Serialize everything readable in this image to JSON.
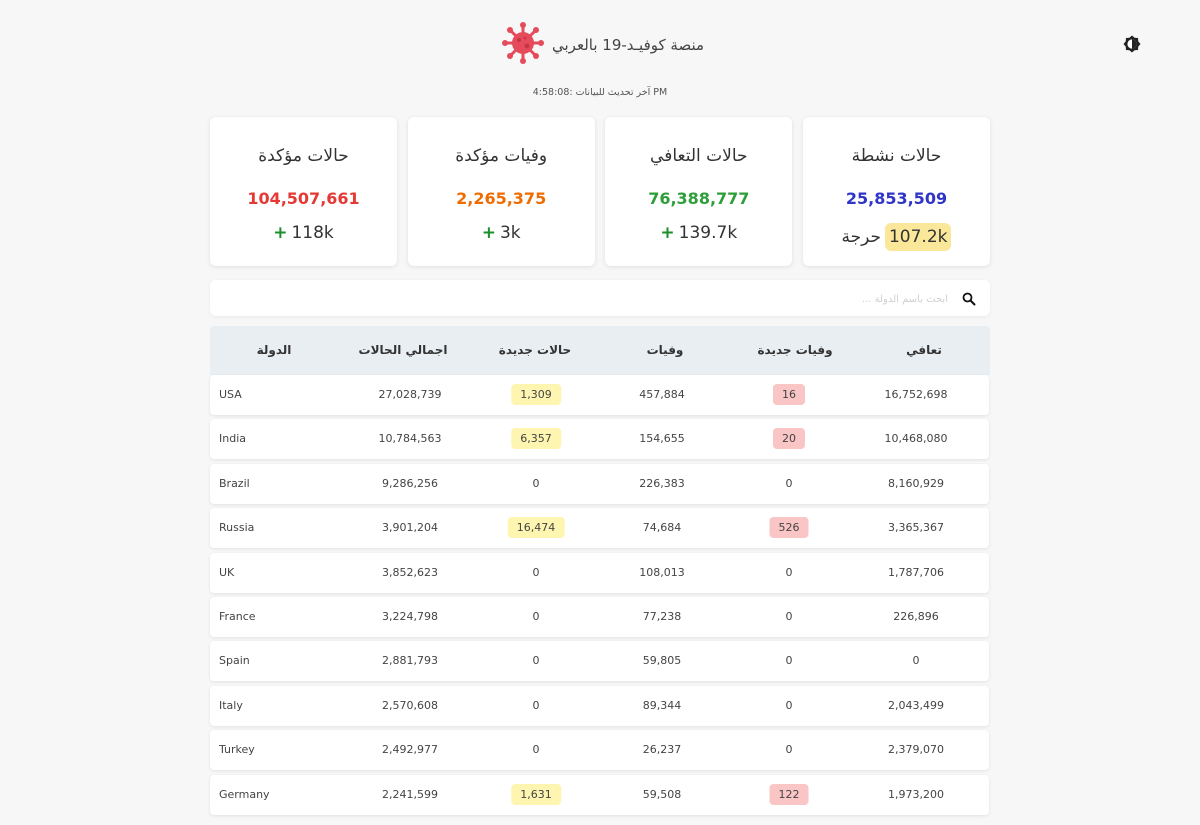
{
  "header": {
    "title": "منصة كوفيـد-19 بالعربي",
    "logo_icon": "virus-icon",
    "theme_icon": "brightness-icon",
    "last_updated": "آخر تحديث للبيانات :4:58:08 PM"
  },
  "colors": {
    "confirmed": "#e53935",
    "deaths": "#ef6c00",
    "recovered": "#2e9e3a",
    "active": "#2f35c6",
    "logo": "#e54b5a",
    "critical_badge": "#fbe79a",
    "new_cases_badge": "#fdf5b0",
    "new_deaths_badge": "#fac5c5"
  },
  "cards": {
    "active": {
      "title": "حالات نشطة",
      "value": "25,853,509",
      "critical_value": "107.2k",
      "critical_label": "حرجة"
    },
    "recovered": {
      "title": "حالات التعافي",
      "value": "76,388,777",
      "delta": "139.7k",
      "plus": "+"
    },
    "deaths": {
      "title": "وفيات مؤكدة",
      "value": "2,265,375",
      "delta": "3k",
      "plus": "+"
    },
    "confirmed": {
      "title": "حالات مؤكدة",
      "value": "104,507,661",
      "delta": "118k",
      "plus": "+"
    }
  },
  "search": {
    "placeholder": "ابحث باسم الدولة ..."
  },
  "table": {
    "headers": {
      "country": "الدولة",
      "total": "اجمالي الحالات",
      "new_cases": "حالات جديدة",
      "deaths": "وفيات",
      "new_deaths": "وفيات جديدة",
      "recovered": "تعافي"
    },
    "rows": [
      {
        "country": "USA",
        "total": "27,028,739",
        "new_cases": "1,309",
        "deaths": "457,884",
        "new_deaths": "16",
        "recovered": "16,752,698"
      },
      {
        "country": "India",
        "total": "10,784,563",
        "new_cases": "6,357",
        "deaths": "154,655",
        "new_deaths": "20",
        "recovered": "10,468,080"
      },
      {
        "country": "Brazil",
        "total": "9,286,256",
        "new_cases": "0",
        "deaths": "226,383",
        "new_deaths": "0",
        "recovered": "8,160,929"
      },
      {
        "country": "Russia",
        "total": "3,901,204",
        "new_cases": "16,474",
        "deaths": "74,684",
        "new_deaths": "526",
        "recovered": "3,365,367"
      },
      {
        "country": "UK",
        "total": "3,852,623",
        "new_cases": "0",
        "deaths": "108,013",
        "new_deaths": "0",
        "recovered": "1,787,706"
      },
      {
        "country": "France",
        "total": "3,224,798",
        "new_cases": "0",
        "deaths": "77,238",
        "new_deaths": "0",
        "recovered": "226,896"
      },
      {
        "country": "Spain",
        "total": "2,881,793",
        "new_cases": "0",
        "deaths": "59,805",
        "new_deaths": "0",
        "recovered": "0"
      },
      {
        "country": "Italy",
        "total": "2,570,608",
        "new_cases": "0",
        "deaths": "89,344",
        "new_deaths": "0",
        "recovered": "2,043,499"
      },
      {
        "country": "Turkey",
        "total": "2,492,977",
        "new_cases": "0",
        "deaths": "26,237",
        "new_deaths": "0",
        "recovered": "2,379,070"
      },
      {
        "country": "Germany",
        "total": "2,241,599",
        "new_cases": "1,631",
        "deaths": "59,508",
        "new_deaths": "122",
        "recovered": "1,973,200"
      }
    ]
  }
}
